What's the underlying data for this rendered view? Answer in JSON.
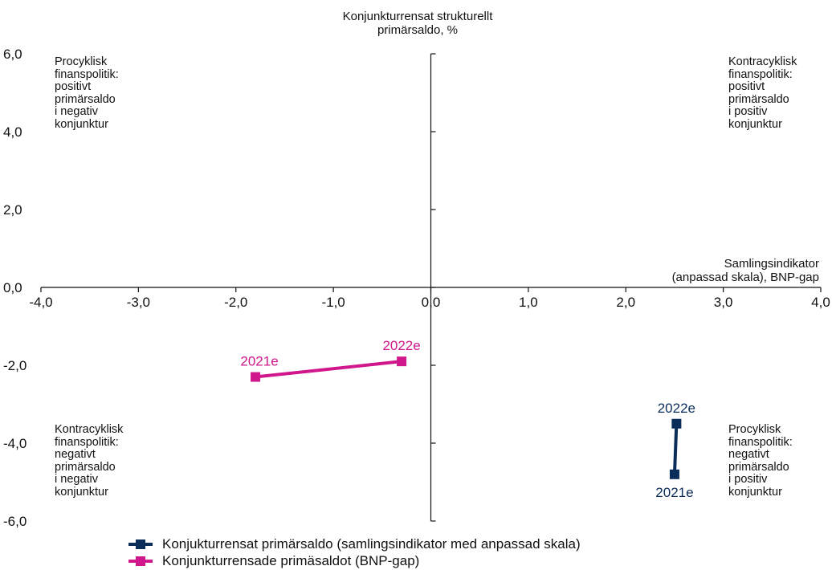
{
  "chart_data": {
    "type": "scatter",
    "title": "",
    "y_axis_title": "Konjunkturrensat strukturellt\nprimärsaldo, %",
    "x_axis_title": "Samlingsindikator\n(anpassad skala), BNP-gap",
    "xlim": [
      -4,
      4
    ],
    "ylim": [
      -6,
      6
    ],
    "x_ticks": [
      "-4,0",
      "-3,0",
      "-2,0",
      "-1,0",
      "0,0",
      "1,0",
      "2,0",
      "3,0",
      "4,0"
    ],
    "y_ticks": [
      "6,0",
      "4,0",
      "2,0",
      "0,0",
      "-2,0",
      "-4,0",
      "-6,0"
    ],
    "grid": false,
    "legend_position": "bottom",
    "series": [
      {
        "name": "Konjukturrensat primärsaldo (samlingsindikator med anpassad skala)",
        "color": "#0b2d5a",
        "points": [
          {
            "label": "2021e",
            "x": 2.5,
            "y": -4.8
          },
          {
            "label": "2022e",
            "x": 2.52,
            "y": -3.5
          }
        ]
      },
      {
        "name": "Konjunkturrensade primäsaldot (BNP-gap)",
        "color": "#d0178b",
        "points": [
          {
            "label": "2021e",
            "x": -1.8,
            "y": -2.3
          },
          {
            "label": "2022e",
            "x": -0.3,
            "y": -1.9
          }
        ]
      }
    ],
    "annotations": {
      "top_left": "Procyklisk\nfinanspolitik:\npositivt\nprimärsaldo\ni negativ\nkonjunktur",
      "top_right": "Kontracyklisk\nfinanspolitik:\npositivt\nprimärsaldo\ni positiv\nkonjunktur",
      "bottom_left": "Kontracyklisk\nfinanspolitik:\nnegativt\nprimärsaldo\ni negativ\nkonjunktur",
      "bottom_right": "Procyklisk\nfinanspolitik:\nnegativt\nprimärsaldo\ni positiv\nkonjunktur"
    }
  }
}
